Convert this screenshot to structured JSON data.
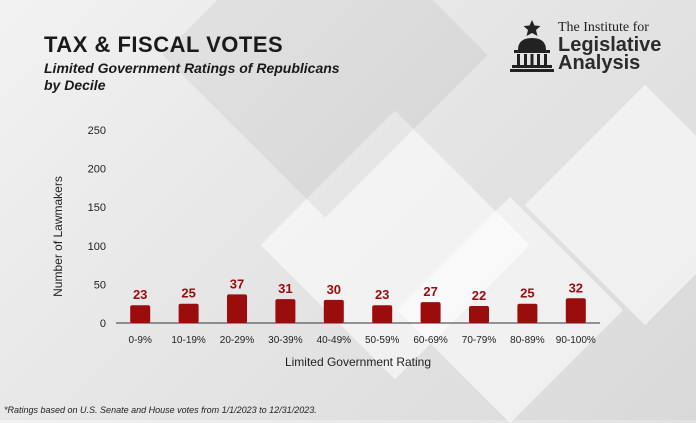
{
  "header": {
    "title": "TAX & FISCAL VOTES",
    "subtitle": "Limited Government Ratings of Republicans by Decile"
  },
  "logo": {
    "line1": "The Institute for",
    "line2": "Legislative",
    "line3": "Analysis"
  },
  "footnote": "*Ratings based on U.S. Senate and House votes from 1/1/2023 to 12/31/2023.",
  "colors": {
    "bar": "#9b0d0d",
    "label": "#9b0d0d",
    "axis": "#333333",
    "text": "#222222"
  },
  "chart_data": {
    "type": "bar",
    "categories": [
      "0-9%",
      "10-19%",
      "20-29%",
      "30-39%",
      "40-49%",
      "50-59%",
      "60-69%",
      "70-79%",
      "80-89%",
      "90-100%"
    ],
    "values": [
      23,
      25,
      37,
      31,
      30,
      23,
      27,
      22,
      25,
      32
    ],
    "xlabel": "Limited Government Rating",
    "ylabel": "Number of Lawmakers",
    "ylim": [
      0,
      250
    ],
    "yticks": [
      0,
      50,
      100,
      150,
      200,
      250
    ],
    "grid": false,
    "data_labels": true
  }
}
